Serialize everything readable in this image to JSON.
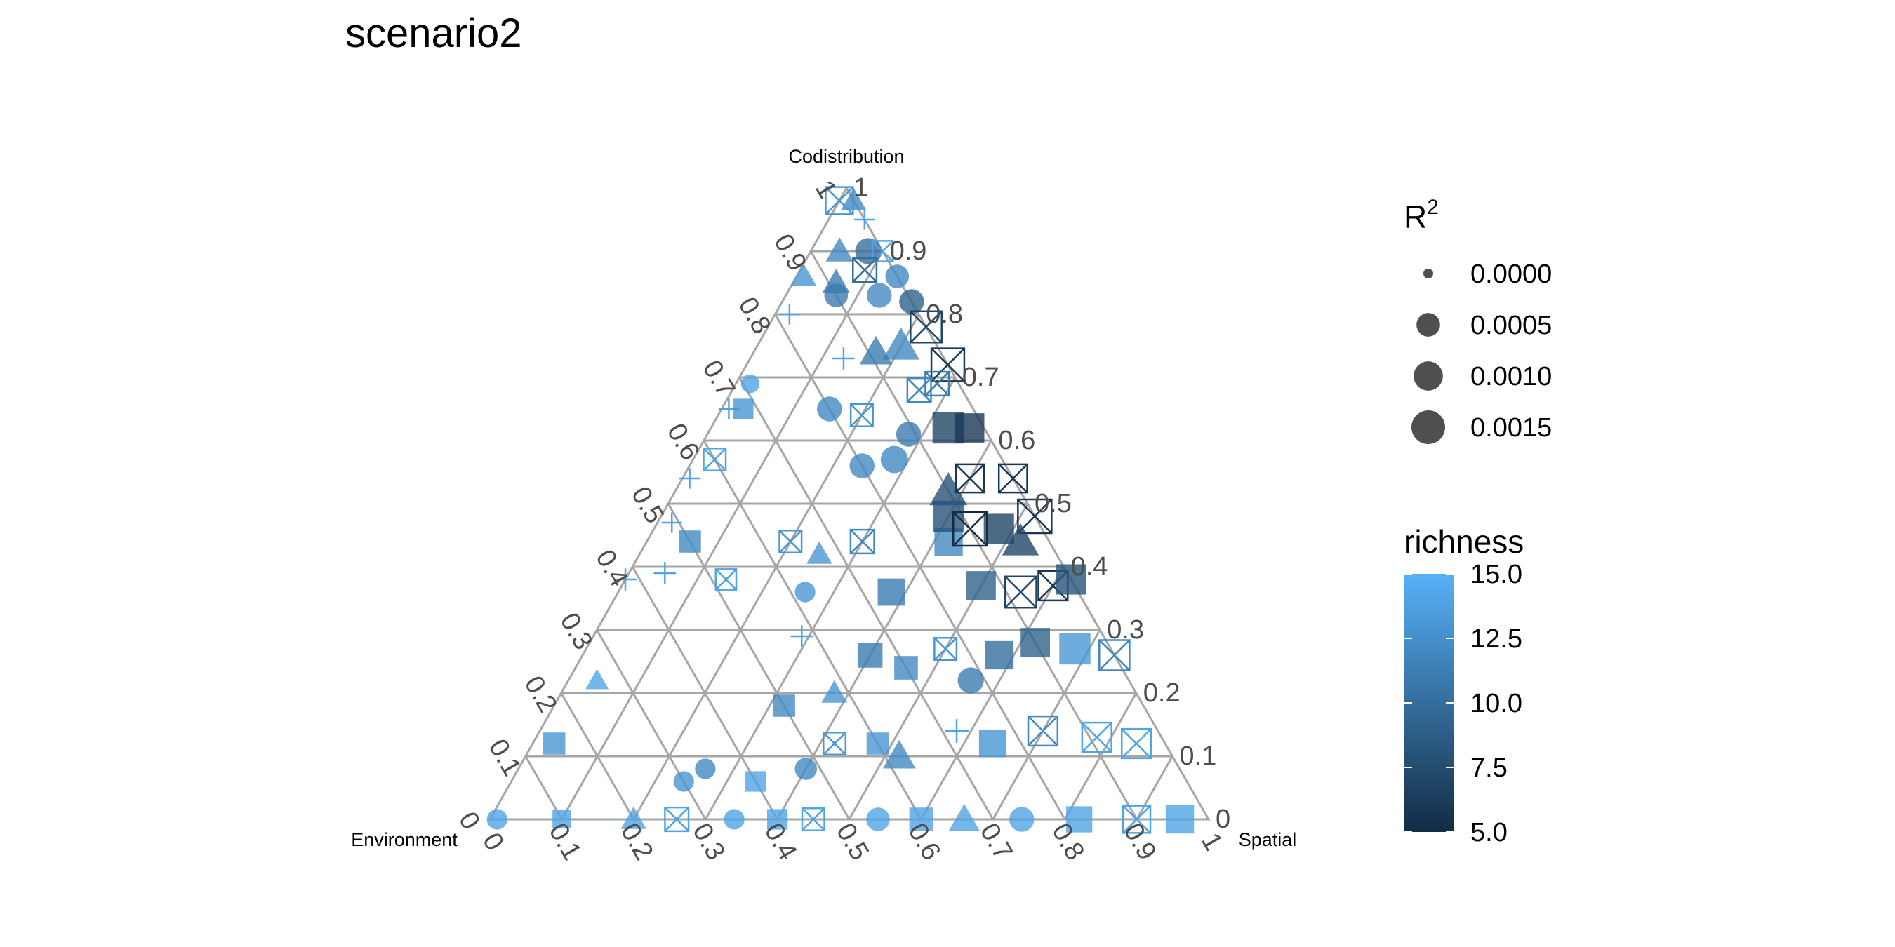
{
  "title": "scenario2",
  "chart_data": {
    "type": "scatter",
    "subtype": "ternary",
    "title": "scenario2",
    "axes": {
      "top": "Codistribution",
      "left": "Environment",
      "right": "Spatial"
    },
    "ticks": [
      "0",
      "0.1",
      "0.2",
      "0.3",
      "0.4",
      "0.5",
      "0.6",
      "0.7",
      "0.8",
      "0.9",
      "1"
    ],
    "grid": true,
    "size_legend": {
      "title_base": "R",
      "title_sup": "2",
      "values": [
        "0.0000",
        "0.0005",
        "0.0010",
        "0.0015"
      ]
    },
    "color_legend": {
      "title": "richness",
      "range": [
        5,
        15
      ],
      "breaks": [
        "15.0",
        "12.5",
        "10.0",
        "7.5",
        "5.0"
      ],
      "low_color": "#132B43",
      "high_color": "#56B1F7"
    },
    "shapes": [
      "circle",
      "triangle",
      "square",
      "plus",
      "boxed-x"
    ],
    "points_note_excluded": true,
    "points": [
      {
        "env": 0.0,
        "spa": 0.02,
        "cod": 0.98,
        "r": 12,
        "shape": "triangle",
        "size": 0.0003
      },
      {
        "env": 0.02,
        "spa": 0.0,
        "cod": 0.98,
        "r": 13,
        "shape": "boxed-x",
        "size": 0.0008
      },
      {
        "env": 0.0,
        "spa": 0.05,
        "cod": 0.95,
        "r": 14,
        "shape": "plus",
        "size": 0.0003
      },
      {
        "env": 0.06,
        "spa": 0.04,
        "cod": 0.9,
        "r": 12,
        "shape": "triangle",
        "size": 0.0004
      },
      {
        "env": 0.02,
        "spa": 0.08,
        "cod": 0.9,
        "r": 10,
        "shape": "circle",
        "size": 0.0007
      },
      {
        "env": 0.0,
        "spa": 0.1,
        "cod": 0.9,
        "r": 14,
        "shape": "boxed-x",
        "size": 0.0003
      },
      {
        "env": 0.13,
        "spa": 0.01,
        "cod": 0.86,
        "r": 13,
        "shape": "triangle",
        "size": 0.0003
      },
      {
        "env": 0.09,
        "spa": 0.06,
        "cod": 0.85,
        "r": 11,
        "shape": "triangle",
        "size": 0.0004
      },
      {
        "env": 0.04,
        "spa": 0.09,
        "cod": 0.87,
        "r": 10,
        "shape": "boxed-x",
        "size": 0.0005
      },
      {
        "env": 0.0,
        "spa": 0.14,
        "cod": 0.86,
        "r": 12,
        "shape": "circle",
        "size": 0.0005
      },
      {
        "env": 0.18,
        "spa": 0.02,
        "cod": 0.8,
        "r": 14,
        "shape": "plus",
        "size": 0.0003
      },
      {
        "env": 0.1,
        "spa": 0.07,
        "cod": 0.83,
        "r": 11,
        "shape": "circle",
        "size": 0.0005
      },
      {
        "env": 0.04,
        "spa": 0.13,
        "cod": 0.83,
        "r": 12,
        "shape": "circle",
        "size": 0.0006
      },
      {
        "env": 0.0,
        "spa": 0.18,
        "cod": 0.82,
        "r": 9,
        "shape": "circle",
        "size": 0.0006
      },
      {
        "env": 0.0,
        "spa": 0.22,
        "cod": 0.78,
        "r": 7,
        "shape": "boxed-x",
        "size": 0.0012
      },
      {
        "env": 0.05,
        "spa": 0.2,
        "cod": 0.75,
        "r": 12,
        "shape": "triangle",
        "size": 0.001
      },
      {
        "env": 0.09,
        "spa": 0.17,
        "cod": 0.74,
        "r": 11,
        "shape": "triangle",
        "size": 0.0007
      },
      {
        "env": 0.14,
        "spa": 0.13,
        "cod": 0.73,
        "r": 14,
        "shape": "plus",
        "size": 0.0004
      },
      {
        "env": 0.29,
        "spa": 0.02,
        "cod": 0.69,
        "r": 14,
        "shape": "circle",
        "size": 0.0002
      },
      {
        "env": 0.34,
        "spa": 0.01,
        "cod": 0.65,
        "r": 14,
        "shape": "plus",
        "size": 0.0003
      },
      {
        "env": 0.32,
        "spa": 0.03,
        "cod": 0.65,
        "r": 13,
        "shape": "square",
        "size": 0.0003
      },
      {
        "env": 0.0,
        "spa": 0.28,
        "cod": 0.72,
        "r": 6,
        "shape": "boxed-x",
        "size": 0.0014
      },
      {
        "env": 0.03,
        "spa": 0.28,
        "cod": 0.69,
        "r": 11,
        "shape": "boxed-x",
        "size": 0.0005
      },
      {
        "env": 0.06,
        "spa": 0.26,
        "cod": 0.68,
        "r": 12,
        "shape": "boxed-x",
        "size": 0.0005
      },
      {
        "env": 0.2,
        "spa": 0.15,
        "cod": 0.65,
        "r": 12,
        "shape": "circle",
        "size": 0.0006
      },
      {
        "env": 0.16,
        "spa": 0.2,
        "cod": 0.64,
        "r": 13,
        "shape": "boxed-x",
        "size": 0.0004
      },
      {
        "env": 0.4,
        "spa": 0.03,
        "cod": 0.57,
        "r": 14,
        "shape": "boxed-x",
        "size": 0.0004
      },
      {
        "env": 0.45,
        "spa": 0.01,
        "cod": 0.54,
        "r": 14,
        "shape": "plus",
        "size": 0.0003
      },
      {
        "env": 0.11,
        "spa": 0.28,
        "cod": 0.61,
        "r": 11,
        "shape": "circle",
        "size": 0.0006
      },
      {
        "env": 0.05,
        "spa": 0.33,
        "cod": 0.62,
        "r": 7,
        "shape": "square",
        "size": 0.0012
      },
      {
        "env": 0.02,
        "spa": 0.36,
        "cod": 0.62,
        "r": 6,
        "shape": "square",
        "size": 0.001
      },
      {
        "env": 0.15,
        "spa": 0.28,
        "cod": 0.57,
        "r": 12,
        "shape": "circle",
        "size": 0.0008
      },
      {
        "env": 0.2,
        "spa": 0.24,
        "cod": 0.56,
        "r": 12,
        "shape": "circle",
        "size": 0.0006
      },
      {
        "env": 0.51,
        "spa": 0.02,
        "cod": 0.47,
        "r": 14,
        "shape": "plus",
        "size": 0.0003
      },
      {
        "env": 0.5,
        "spa": 0.06,
        "cod": 0.44,
        "r": 12,
        "shape": "square",
        "size": 0.0004
      },
      {
        "env": 0.36,
        "spa": 0.2,
        "cod": 0.44,
        "r": 13,
        "shape": "boxed-x",
        "size": 0.0004
      },
      {
        "env": 0.33,
        "spa": 0.25,
        "cod": 0.42,
        "r": 13,
        "shape": "triangle",
        "size": 0.0003
      },
      {
        "env": 0.26,
        "spa": 0.3,
        "cod": 0.44,
        "r": 12,
        "shape": "boxed-x",
        "size": 0.0005
      },
      {
        "env": 0.1,
        "spa": 0.38,
        "cod": 0.52,
        "r": 8,
        "shape": "triangle",
        "size": 0.0011
      },
      {
        "env": 0.06,
        "spa": 0.4,
        "cod": 0.54,
        "r": 6,
        "shape": "boxed-x",
        "size": 0.0009
      },
      {
        "env": 0.0,
        "spa": 0.46,
        "cod": 0.54,
        "r": 6,
        "shape": "boxed-x",
        "size": 0.0009
      },
      {
        "env": 0.0,
        "spa": 0.52,
        "cod": 0.48,
        "r": 6,
        "shape": "boxed-x",
        "size": 0.0015
      },
      {
        "env": 0.06,
        "spa": 0.48,
        "cod": 0.46,
        "r": 7,
        "shape": "square",
        "size": 0.0011
      },
      {
        "env": 0.14,
        "spa": 0.42,
        "cod": 0.44,
        "r": 12,
        "shape": "square",
        "size": 0.0009
      },
      {
        "env": 0.56,
        "spa": 0.05,
        "cod": 0.39,
        "r": 14,
        "shape": "plus",
        "size": 0.0004
      },
      {
        "env": 0.62,
        "spa": 0.0,
        "cod": 0.38,
        "r": 14,
        "shape": "plus",
        "size": 0.0004
      },
      {
        "env": 0.48,
        "spa": 0.14,
        "cod": 0.38,
        "r": 14,
        "shape": "boxed-x",
        "size": 0.0003
      },
      {
        "env": 0.38,
        "spa": 0.26,
        "cod": 0.36,
        "r": 13,
        "shape": "circle",
        "size": 0.0003
      },
      {
        "env": 0.42,
        "spa": 0.29,
        "cod": 0.29,
        "r": 14,
        "shape": "plus",
        "size": 0.0004
      },
      {
        "env": 0.26,
        "spa": 0.38,
        "cod": 0.36,
        "r": 11,
        "shape": "square",
        "size": 0.0008
      },
      {
        "env": 0.13,
        "spa": 0.5,
        "cod": 0.37,
        "r": 9,
        "shape": "square",
        "size": 0.001
      },
      {
        "env": 0.08,
        "spa": 0.56,
        "cod": 0.36,
        "r": 7,
        "shape": "boxed-x",
        "size": 0.0012
      },
      {
        "env": 0.03,
        "spa": 0.6,
        "cod": 0.37,
        "r": 6,
        "shape": "boxed-x",
        "size": 0.001
      },
      {
        "env": 0.0,
        "spa": 0.62,
        "cod": 0.38,
        "r": 8,
        "shape": "square",
        "size": 0.0011
      },
      {
        "env": 0.74,
        "spa": 0.04,
        "cod": 0.22,
        "r": 14,
        "shape": "triangle",
        "size": 0.0002
      },
      {
        "env": 0.85,
        "spa": 0.03,
        "cod": 0.12,
        "r": 13,
        "shape": "square",
        "size": 0.0004
      },
      {
        "env": 0.5,
        "spa": 0.32,
        "cod": 0.18,
        "r": 12,
        "shape": "square",
        "size": 0.0004
      },
      {
        "env": 0.42,
        "spa": 0.38,
        "cod": 0.2,
        "r": 13,
        "shape": "triangle",
        "size": 0.0003
      },
      {
        "env": 0.34,
        "spa": 0.4,
        "cod": 0.26,
        "r": 11,
        "shape": "square",
        "size": 0.0006
      },
      {
        "env": 0.3,
        "spa": 0.46,
        "cod": 0.24,
        "r": 12,
        "shape": "square",
        "size": 0.0005
      },
      {
        "env": 0.23,
        "spa": 0.5,
        "cod": 0.27,
        "r": 13,
        "shape": "boxed-x",
        "size": 0.0004
      },
      {
        "env": 0.22,
        "spa": 0.56,
        "cod": 0.22,
        "r": 11,
        "shape": "circle",
        "size": 0.0007
      },
      {
        "env": 0.16,
        "spa": 0.58,
        "cod": 0.26,
        "r": 10,
        "shape": "square",
        "size": 0.0009
      },
      {
        "env": 0.1,
        "spa": 0.62,
        "cod": 0.28,
        "r": 9,
        "shape": "square",
        "size": 0.001
      },
      {
        "env": 0.05,
        "spa": 0.68,
        "cod": 0.27,
        "r": 13,
        "shape": "square",
        "size": 0.0012
      },
      {
        "env": 0.0,
        "spa": 0.74,
        "cod": 0.26,
        "r": 12,
        "shape": "boxed-x",
        "size": 0.0011
      },
      {
        "env": 0.46,
        "spa": 0.42,
        "cod": 0.12,
        "r": 13,
        "shape": "boxed-x",
        "size": 0.0004
      },
      {
        "env": 0.52,
        "spa": 0.4,
        "cod": 0.08,
        "r": 12,
        "shape": "circle",
        "size": 0.0004
      },
      {
        "env": 0.4,
        "spa": 0.48,
        "cod": 0.12,
        "r": 13,
        "shape": "square",
        "size": 0.0004
      },
      {
        "env": 0.38,
        "spa": 0.52,
        "cod": 0.1,
        "r": 12,
        "shape": "triangle",
        "size": 0.0007
      },
      {
        "env": 0.28,
        "spa": 0.58,
        "cod": 0.14,
        "r": 14,
        "shape": "plus",
        "size": 0.0005
      },
      {
        "env": 0.24,
        "spa": 0.64,
        "cod": 0.12,
        "r": 13,
        "shape": "square",
        "size": 0.0008
      },
      {
        "env": 0.16,
        "spa": 0.7,
        "cod": 0.14,
        "r": 12,
        "shape": "boxed-x",
        "size": 0.001
      },
      {
        "env": 0.09,
        "spa": 0.78,
        "cod": 0.13,
        "r": 14,
        "shape": "boxed-x",
        "size": 0.001
      },
      {
        "env": 0.04,
        "spa": 0.84,
        "cod": 0.12,
        "r": 14,
        "shape": "boxed-x",
        "size": 0.001
      },
      {
        "env": 0.99,
        "spa": 0.01,
        "cod": 0.0,
        "r": 14,
        "shape": "circle",
        "size": 0.0003
      },
      {
        "env": 0.9,
        "spa": 0.1,
        "cod": 0.0,
        "r": 14,
        "shape": "square",
        "size": 0.0002
      },
      {
        "env": 0.8,
        "spa": 0.2,
        "cod": 0.0,
        "r": 14,
        "shape": "triangle",
        "size": 0.0003
      },
      {
        "env": 0.74,
        "spa": 0.26,
        "cod": 0.0,
        "r": 14,
        "shape": "boxed-x",
        "size": 0.0005
      },
      {
        "env": 0.66,
        "spa": 0.34,
        "cod": 0.0,
        "r": 14,
        "shape": "circle",
        "size": 0.0003
      },
      {
        "env": 0.6,
        "spa": 0.4,
        "cod": 0.0,
        "r": 14,
        "shape": "square",
        "size": 0.0003
      },
      {
        "env": 0.55,
        "spa": 0.45,
        "cod": 0.0,
        "r": 14,
        "shape": "boxed-x",
        "size": 0.0004
      },
      {
        "env": 0.46,
        "spa": 0.54,
        "cod": 0.0,
        "r": 14,
        "shape": "circle",
        "size": 0.0005
      },
      {
        "env": 0.4,
        "spa": 0.6,
        "cod": 0.0,
        "r": 14,
        "shape": "square",
        "size": 0.0005
      },
      {
        "env": 0.34,
        "spa": 0.66,
        "cod": 0.0,
        "r": 14,
        "shape": "triangle",
        "size": 0.0006
      },
      {
        "env": 0.26,
        "spa": 0.74,
        "cod": 0.0,
        "r": 14,
        "shape": "circle",
        "size": 0.0006
      },
      {
        "env": 0.18,
        "spa": 0.82,
        "cod": 0.0,
        "r": 14,
        "shape": "square",
        "size": 0.0007
      },
      {
        "env": 0.1,
        "spa": 0.9,
        "cod": 0.0,
        "r": 14,
        "shape": "boxed-x",
        "size": 0.0008
      },
      {
        "env": 0.04,
        "spa": 0.96,
        "cod": 0.0,
        "r": 14,
        "shape": "square",
        "size": 0.0009
      },
      {
        "env": 0.66,
        "spa": 0.26,
        "cod": 0.08,
        "r": 12,
        "shape": "circle",
        "size": 0.0003
      },
      {
        "env": 0.7,
        "spa": 0.24,
        "cod": 0.06,
        "r": 13,
        "shape": "circle",
        "size": 0.0003
      },
      {
        "env": 0.6,
        "spa": 0.34,
        "cod": 0.06,
        "r": 14,
        "shape": "square",
        "size": 0.0003
      },
      {
        "env": 0.12,
        "spa": 0.4,
        "cod": 0.48,
        "r": 8,
        "shape": "square",
        "size": 0.0012
      },
      {
        "env": 0.1,
        "spa": 0.44,
        "cod": 0.46,
        "r": 5,
        "shape": "boxed-x",
        "size": 0.0015
      },
      {
        "env": 0.04,
        "spa": 0.52,
        "cod": 0.44,
        "r": 7,
        "shape": "triangle",
        "size": 0.001
      }
    ]
  }
}
